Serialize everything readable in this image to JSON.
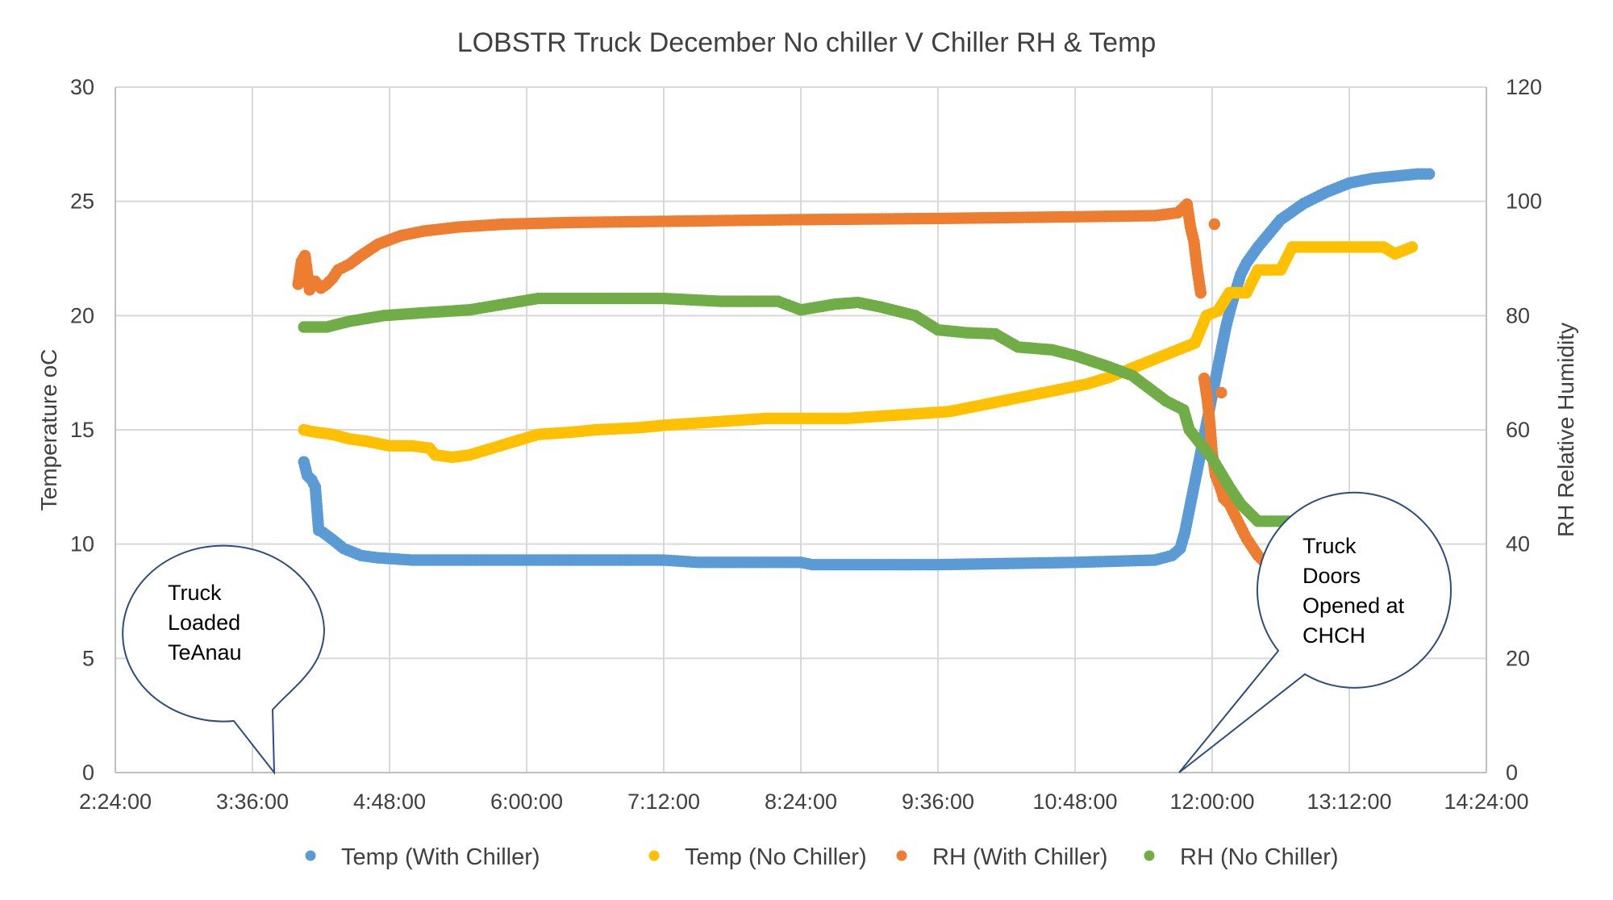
{
  "chart_data": {
    "type": "scatter",
    "title": "LOBSTR Truck December No chiller V Chiller RH & Temp",
    "xlabel": "",
    "ylabel_left": "Temperature oC",
    "ylabel_right": "RH Relative Humidity",
    "x_unit": "hours (time of day)",
    "xlim": [
      2.4,
      14.4
    ],
    "x_ticks": [
      2.4,
      3.6,
      4.8,
      6.0,
      7.2,
      8.4,
      9.6,
      10.8,
      12.0,
      13.2,
      14.4
    ],
    "x_tick_labels": [
      "2:24:00",
      "3:36:00",
      "4:48:00",
      "6:00:00",
      "7:12:00",
      "8:24:00",
      "9:36:00",
      "10:48:00",
      "12:00:00",
      "13:12:00",
      "14:24:00"
    ],
    "ylim_left": [
      0,
      30
    ],
    "y_ticks_left": [
      "0",
      "5",
      "10",
      "15",
      "20",
      "25",
      "30"
    ],
    "ylim_right": [
      0,
      120
    ],
    "y_ticks_right": [
      "0",
      "20",
      "40",
      "60",
      "80",
      "100",
      "120"
    ],
    "grid": true,
    "legend_position": "bottom",
    "series": [
      {
        "name": "Temp (With Chiller)",
        "axis": "left",
        "color": "#5B9BD5",
        "points": [
          [
            4.05,
            13.6
          ],
          [
            4.08,
            13.0
          ],
          [
            4.12,
            12.8
          ],
          [
            4.15,
            12.5
          ],
          [
            4.18,
            10.6
          ],
          [
            4.22,
            10.5
          ],
          [
            4.3,
            10.2
          ],
          [
            4.4,
            9.8
          ],
          [
            4.55,
            9.5
          ],
          [
            4.7,
            9.4
          ],
          [
            5.0,
            9.3
          ],
          [
            6.0,
            9.3
          ],
          [
            7.2,
            9.3
          ],
          [
            7.5,
            9.2
          ],
          [
            8.4,
            9.2
          ],
          [
            8.5,
            9.1
          ],
          [
            9.6,
            9.1
          ],
          [
            10.8,
            9.2
          ],
          [
            11.5,
            9.3
          ],
          [
            11.65,
            9.5
          ],
          [
            11.72,
            9.8
          ],
          [
            11.76,
            10.5
          ],
          [
            11.8,
            11.5
          ],
          [
            11.84,
            12.5
          ],
          [
            11.88,
            13.5
          ],
          [
            11.92,
            14.5
          ],
          [
            11.96,
            15.5
          ],
          [
            12.0,
            16.5
          ],
          [
            12.04,
            17.5
          ],
          [
            12.08,
            18.5
          ],
          [
            12.12,
            19.5
          ],
          [
            12.16,
            20.3
          ],
          [
            12.2,
            21.0
          ],
          [
            12.25,
            21.8
          ],
          [
            12.3,
            22.3
          ],
          [
            12.4,
            23.0
          ],
          [
            12.5,
            23.6
          ],
          [
            12.6,
            24.2
          ],
          [
            12.8,
            24.9
          ],
          [
            13.0,
            25.4
          ],
          [
            13.2,
            25.8
          ],
          [
            13.4,
            26.0
          ],
          [
            13.6,
            26.1
          ],
          [
            13.8,
            26.2
          ],
          [
            13.9,
            26.2
          ]
        ]
      },
      {
        "name": "Temp (No Chiller)",
        "axis": "left",
        "color": "#FFC000",
        "points": [
          [
            4.05,
            15.0
          ],
          [
            4.15,
            14.9
          ],
          [
            4.3,
            14.8
          ],
          [
            4.45,
            14.6
          ],
          [
            4.6,
            14.5
          ],
          [
            4.8,
            14.3
          ],
          [
            5.0,
            14.3
          ],
          [
            5.15,
            14.2
          ],
          [
            5.2,
            13.9
          ],
          [
            5.35,
            13.8
          ],
          [
            5.5,
            13.9
          ],
          [
            5.7,
            14.2
          ],
          [
            5.9,
            14.5
          ],
          [
            6.1,
            14.8
          ],
          [
            6.4,
            14.9
          ],
          [
            6.6,
            15.0
          ],
          [
            7.0,
            15.1
          ],
          [
            7.2,
            15.2
          ],
          [
            7.5,
            15.3
          ],
          [
            7.8,
            15.4
          ],
          [
            8.1,
            15.5
          ],
          [
            8.4,
            15.5
          ],
          [
            8.8,
            15.5
          ],
          [
            9.1,
            15.6
          ],
          [
            9.4,
            15.7
          ],
          [
            9.7,
            15.8
          ],
          [
            10.0,
            16.1
          ],
          [
            10.3,
            16.4
          ],
          [
            10.6,
            16.7
          ],
          [
            10.9,
            17.0
          ],
          [
            11.1,
            17.3
          ],
          [
            11.3,
            17.7
          ],
          [
            11.5,
            18.1
          ],
          [
            11.7,
            18.5
          ],
          [
            11.85,
            18.8
          ],
          [
            11.95,
            20.0
          ],
          [
            12.05,
            20.2
          ],
          [
            12.15,
            21.0
          ],
          [
            12.3,
            21.0
          ],
          [
            12.4,
            22.0
          ],
          [
            12.6,
            22.0
          ],
          [
            12.7,
            23.0
          ],
          [
            13.0,
            23.0
          ],
          [
            13.3,
            23.0
          ],
          [
            13.5,
            23.0
          ],
          [
            13.6,
            22.7
          ],
          [
            13.75,
            23.0
          ]
        ]
      },
      {
        "name": "RH (With Chiller)",
        "axis": "right",
        "color": "#ED7D31",
        "points": [
          [
            4.0,
            85.5
          ],
          [
            4.03,
            89.5
          ],
          [
            4.06,
            90.5
          ],
          [
            4.1,
            84.5
          ],
          [
            4.15,
            86.0
          ],
          [
            4.2,
            84.8
          ],
          [
            4.25,
            85.5
          ],
          [
            4.3,
            86.5
          ],
          [
            4.35,
            88.0
          ],
          [
            4.45,
            89.0
          ],
          [
            4.55,
            90.5
          ],
          [
            4.7,
            92.5
          ],
          [
            4.9,
            94.0
          ],
          [
            5.1,
            94.8
          ],
          [
            5.4,
            95.5
          ],
          [
            5.8,
            96.0
          ],
          [
            6.4,
            96.3
          ],
          [
            7.2,
            96.5
          ],
          [
            8.4,
            96.8
          ],
          [
            9.6,
            97.0
          ],
          [
            10.8,
            97.3
          ],
          [
            11.5,
            97.5
          ],
          [
            11.7,
            98.0
          ],
          [
            11.78,
            99.5
          ],
          [
            11.81,
            95.5
          ],
          [
            11.84,
            93.0
          ],
          [
            11.87,
            88.0
          ],
          [
            11.9,
            84.0
          ],
          [
            11.93,
            69.0
          ],
          [
            11.96,
            65.0
          ],
          [
            11.98,
            61.0
          ],
          [
            12.0,
            56.0
          ],
          [
            12.03,
            52.0
          ],
          [
            12.07,
            50.0
          ],
          [
            12.1,
            48.0
          ],
          [
            12.15,
            47.0
          ],
          [
            12.2,
            45.0
          ],
          [
            12.25,
            43.0
          ],
          [
            12.3,
            41.0
          ],
          [
            12.35,
            39.5
          ],
          [
            12.4,
            38.0
          ],
          [
            12.45,
            37.0
          ],
          [
            12.02,
            96.0
          ],
          [
            12.08,
            66.5
          ]
        ]
      },
      {
        "name": "RH (No Chiller)",
        "axis": "right",
        "color": "#70AD47",
        "points": [
          [
            4.05,
            78.0
          ],
          [
            4.25,
            78.0
          ],
          [
            4.45,
            79.0
          ],
          [
            4.75,
            80.0
          ],
          [
            5.1,
            80.5
          ],
          [
            5.5,
            81.0
          ],
          [
            5.8,
            82.0
          ],
          [
            6.1,
            83.0
          ],
          [
            6.6,
            83.0
          ],
          [
            7.2,
            83.0
          ],
          [
            7.7,
            82.5
          ],
          [
            8.2,
            82.5
          ],
          [
            8.4,
            81.0
          ],
          [
            8.7,
            82.0
          ],
          [
            8.9,
            82.3
          ],
          [
            9.1,
            81.5
          ],
          [
            9.4,
            80.0
          ],
          [
            9.6,
            77.5
          ],
          [
            9.85,
            77.0
          ],
          [
            10.1,
            76.8
          ],
          [
            10.3,
            74.5
          ],
          [
            10.6,
            74.0
          ],
          [
            10.8,
            73.0
          ],
          [
            11.1,
            71.0
          ],
          [
            11.3,
            69.5
          ],
          [
            11.6,
            65.0
          ],
          [
            11.75,
            63.5
          ],
          [
            11.8,
            60.0
          ],
          [
            12.0,
            55.0
          ],
          [
            12.15,
            50.0
          ],
          [
            12.25,
            47.0
          ],
          [
            12.4,
            44.0
          ],
          [
            12.6,
            44.0
          ],
          [
            12.8,
            44.0
          ],
          [
            12.95,
            44.0
          ]
        ]
      }
    ],
    "annotations": [
      {
        "lines": [
          "Truck",
          "Loaded",
          "TeAnau"
        ]
      },
      {
        "lines": [
          "Truck",
          "Doors",
          "Opened at",
          "CHCH"
        ]
      }
    ]
  }
}
